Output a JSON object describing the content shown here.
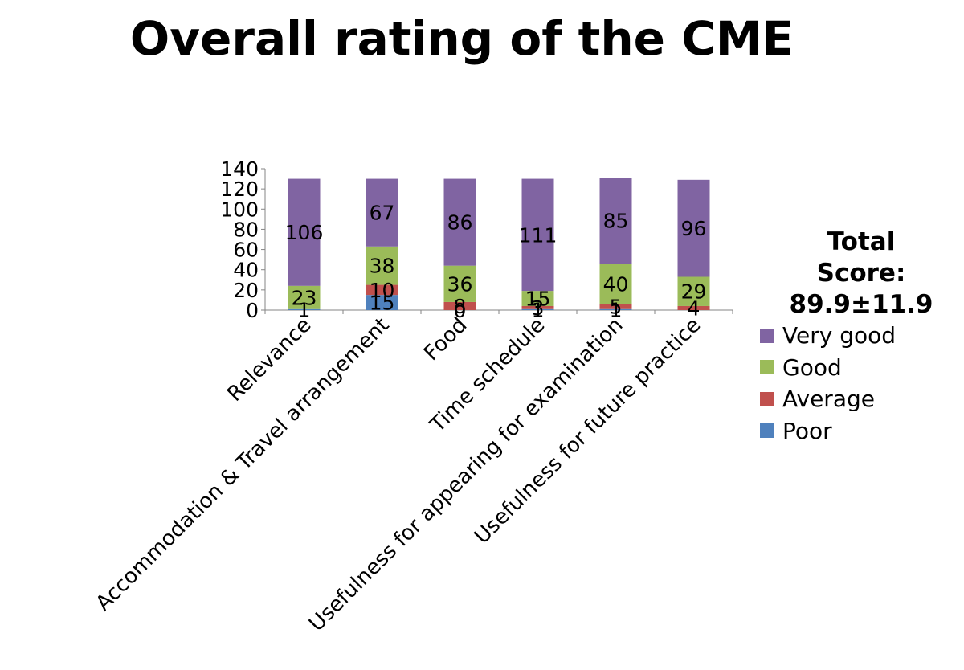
{
  "chart_data": {
    "type": "bar",
    "stacked": true,
    "title": "Overall rating of the CME",
    "xlabel": "",
    "ylabel": "",
    "ylim": [
      0,
      140
    ],
    "yticks": [
      0,
      20,
      40,
      60,
      80,
      100,
      120,
      140
    ],
    "categories": [
      "Relevance",
      "Accommodation & Travel arrangement",
      "Food",
      "Time schedule",
      "Usefulness for appearing for examination",
      "Usefulness for future practice"
    ],
    "series": [
      {
        "name": "Poor",
        "color": "#4f81bd",
        "values": [
          1,
          15,
          0,
          1,
          1,
          0
        ]
      },
      {
        "name": "Average",
        "color": "#c0504d",
        "values": [
          0,
          10,
          8,
          3,
          5,
          4
        ]
      },
      {
        "name": "Good",
        "color": "#9bbb59",
        "values": [
          23,
          38,
          36,
          15,
          40,
          29
        ]
      },
      {
        "name": "Very good",
        "color": "#8064a2",
        "values": [
          106,
          67,
          86,
          111,
          85,
          96
        ]
      }
    ],
    "data_labels": [
      [
        "1",
        "",
        "23",
        "106"
      ],
      [
        "15",
        "10",
        "38",
        "67"
      ],
      [
        "0",
        "8",
        "36",
        "86"
      ],
      [
        "1",
        "3",
        "15",
        "111"
      ],
      [
        "1",
        "5",
        "40",
        "85"
      ],
      [
        "",
        "4",
        "29",
        "96"
      ]
    ],
    "legend_position": "right",
    "legend_order": [
      "Very good",
      "Good",
      "Average",
      "Poor"
    ],
    "grid": false,
    "annotation": "Total Score: 89.9±11.9"
  }
}
